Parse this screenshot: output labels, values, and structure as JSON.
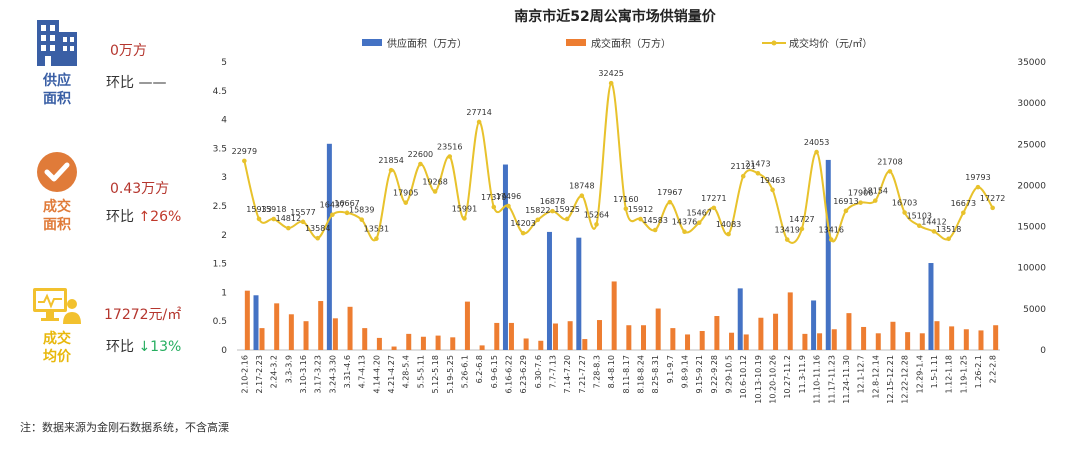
{
  "side_stats": [
    {
      "label_line1": "供应",
      "label_line2": "面积",
      "value": "0万方",
      "change_prefix": "环比",
      "change": "——",
      "direction": "flat",
      "color": "#3A5FA5"
    },
    {
      "label_line1": "成交",
      "label_line2": "面积",
      "value": "0.43万方",
      "change_prefix": "环比",
      "change": "↑26%",
      "direction": "up",
      "color": "#E07B39"
    },
    {
      "label_line1": "成交",
      "label_line2": "均价",
      "value": "17272元/㎡",
      "change_prefix": "环比",
      "change": "↓13%",
      "direction": "down",
      "color": "#F2C12E"
    }
  ],
  "footnote": "注：数据来源为金刚石数据系统，不含高溧",
  "colors": {
    "supply": "#4472C4",
    "deal": "#ED7D31",
    "price": "#E8C22C"
  },
  "chart_data": {
    "type": "bar+line",
    "title": "南京市近52周公寓市场供销量价",
    "legend": [
      "供应面积（万方）",
      "成交面积（万方）",
      "成交均价（元/㎡）"
    ],
    "legend_position": "top",
    "categories": [
      "2.10-2.16",
      "2.17-2.23",
      "2.24-3.2",
      "3.3-3.9",
      "3.10-3.16",
      "3.17-3.23",
      "3.24-3.30",
      "3.31-4.6",
      "4.7-4.13",
      "4.14-4.20",
      "4.21-4.27",
      "4.28-5.4",
      "5.5-5.11",
      "5.12-5.18",
      "5.19-5.25",
      "5.26-6.1",
      "6.2-6.8",
      "6.9-6.15",
      "6.16-6.22",
      "6.23-6.29",
      "6.30-7.6",
      "7.7-7.13",
      "7.14-7.20",
      "7.21-7.27",
      "7.28-8.3",
      "8.4-8.10",
      "8.11-8.17",
      "8.18-8.24",
      "8.25-8.31",
      "9.1-9.7",
      "9.8-9.14",
      "9.15-9.21",
      "9.22-9.28",
      "9.29-10.5",
      "10.6-10.12",
      "10.13-10.19",
      "10.20-10.26",
      "10.27-11.2",
      "11.3-11.9",
      "11.10-11.16",
      "11.17-11.23",
      "11.24-11.30",
      "12.1-12.7",
      "12.8-12.14",
      "12.15-12.21",
      "12.22-12.28",
      "12.29-1.4",
      "1.5-1.11",
      "1.12-1.18",
      "1.19-1.25",
      "1.26-2.1",
      "2.2-2.8"
    ],
    "series": [
      {
        "name": "供应面积（万方）",
        "axis": "left",
        "type": "bar",
        "values": [
          0,
          0.95,
          0,
          0,
          0,
          0,
          3.58,
          0,
          0,
          0,
          0,
          0,
          0,
          0,
          0,
          0,
          0,
          0,
          3.22,
          0,
          0,
          2.05,
          0,
          1.95,
          0,
          0,
          0,
          0,
          0,
          0,
          0,
          0,
          0,
          0,
          1.07,
          0,
          0,
          0,
          0,
          0.86,
          3.3,
          0,
          0,
          0,
          0,
          0,
          0,
          1.51,
          0,
          0,
          0,
          0
        ]
      },
      {
        "name": "成交面积（万方）",
        "axis": "left",
        "type": "bar",
        "values": [
          1.03,
          0.38,
          0.81,
          0.62,
          0.5,
          0.85,
          0.55,
          0.75,
          0.38,
          0.21,
          0.06,
          0.28,
          0.23,
          0.25,
          0.22,
          0.84,
          0.08,
          0.47,
          0.47,
          0.2,
          0.16,
          0.46,
          0.5,
          0.19,
          0.52,
          1.19,
          0.43,
          0.43,
          0.72,
          0.38,
          0.27,
          0.33,
          0.59,
          0.3,
          0.27,
          0.56,
          0.63,
          1.0,
          0.28,
          0.29,
          0.36,
          0.64,
          0.4,
          0.29,
          0.49,
          0.31,
          0.29,
          0.5,
          0.41,
          0.36,
          0.34,
          0.43
        ]
      },
      {
        "name": "成交均价（元/㎡）",
        "axis": "right",
        "type": "line",
        "values": [
          22979,
          15933,
          15918,
          14812,
          15577,
          13584,
          16437,
          16667,
          15839,
          13531,
          21854,
          17905,
          22600,
          19268,
          23516,
          15991,
          27714,
          17379,
          17496,
          14203,
          15822,
          16878,
          15925,
          18748,
          15264,
          32425,
          17160,
          15912,
          14583,
          17967,
          14376,
          15467,
          17271,
          14083,
          21121,
          21473,
          19463,
          13419,
          14727,
          24053,
          13416,
          16913,
          17906,
          18154,
          21708,
          16703,
          15103,
          14412,
          13518,
          16673,
          19793,
          17272
        ]
      }
    ],
    "left_axis": {
      "min": 0,
      "max": 5,
      "ticks": [
        "0",
        "0.5",
        "1",
        "1.5",
        "2",
        "2.5",
        "3",
        "3.5",
        "4",
        "4.5",
        "5"
      ]
    },
    "right_axis": {
      "min": 0,
      "max": 35000,
      "ticks": [
        "0",
        "5000",
        "10000",
        "15000",
        "20000",
        "25000",
        "30000",
        "35000"
      ]
    },
    "grid": false
  }
}
